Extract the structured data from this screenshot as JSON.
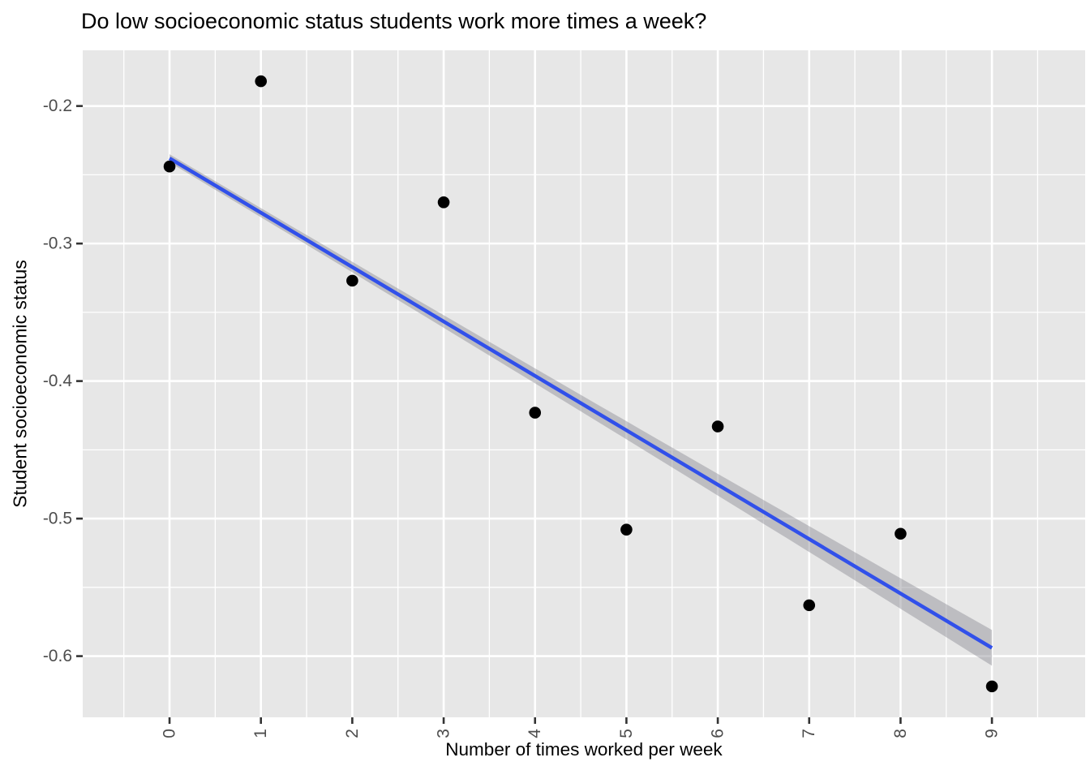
{
  "figure": {
    "title": "Do low socioeconomic status students work more times a week?"
  },
  "chart_data": {
    "type": "scatter",
    "title": "Do low socioeconomic status students work more times a week?",
    "xlabel": "Number of times worked per week",
    "ylabel": "Student socioeconomic status",
    "x": [
      0,
      1,
      2,
      3,
      4,
      5,
      6,
      7,
      8,
      9
    ],
    "y": [
      -0.244,
      -0.182,
      -0.327,
      -0.27,
      -0.423,
      -0.508,
      -0.433,
      -0.563,
      -0.511,
      -0.622
    ],
    "x_tick_labels": [
      "0",
      "1",
      "2",
      "3",
      "4",
      "5",
      "6",
      "7",
      "8",
      "9"
    ],
    "x_tick_values": [
      0,
      1,
      2,
      3,
      4,
      5,
      6,
      7,
      8,
      9
    ],
    "y_tick_labels": [
      "-0.2",
      "-0.3",
      "-0.4",
      "-0.5",
      "-0.6"
    ],
    "y_tick_values": [
      -0.2,
      -0.3,
      -0.4,
      -0.5,
      -0.6
    ],
    "xlim": [
      -0.95,
      10.02
    ],
    "ylim_top": -0.1595,
    "ylim_bottom": -0.6445,
    "grid": "major-and-minor",
    "legend_position": "none",
    "x_tick_label_angle_deg": 90,
    "trend_line": {
      "type": "linear-lm",
      "x_start": 0,
      "y_start": -0.238,
      "x_end": 9,
      "y_end": -0.594
    },
    "ci_band": {
      "half_width_at_start": 0.003,
      "half_width_at_mid": 0.006,
      "half_width_at_end": 0.013
    },
    "colors": {
      "panel_background": "#E7E7E7",
      "gridline": "#FFFFFF",
      "point": "#000000",
      "trend_line": "#3150EA",
      "ci_band": "rgba(138,138,146,0.45)",
      "tick_label": "#4D4D4D",
      "tick_mark": "#333333",
      "title_text": "#000000"
    }
  }
}
